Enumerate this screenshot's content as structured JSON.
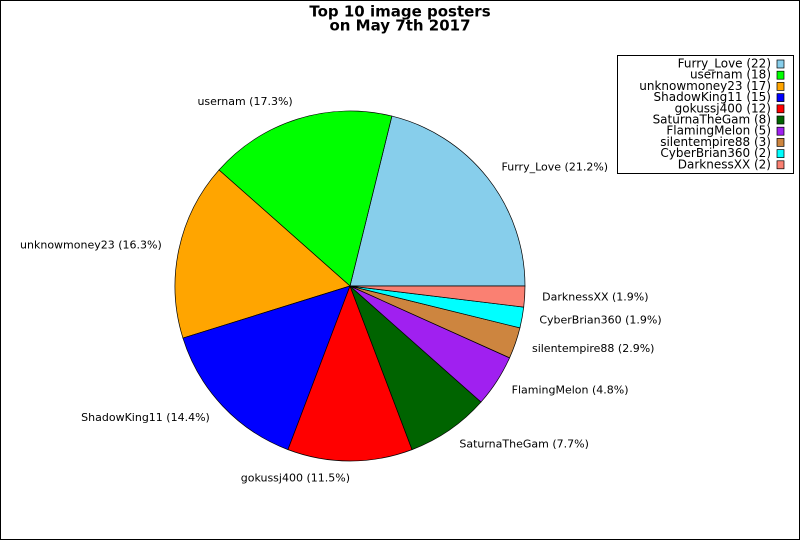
{
  "chart_data": {
    "type": "pie",
    "title": [
      "Top 10 image posters",
      "on May 7th 2017"
    ],
    "categories": [
      "Furry_Love",
      "usernam",
      "unknowmoney23",
      "ShadowKing11",
      "gokussj400",
      "SaturnaTheGam",
      "FlamingMelon",
      "silentempire88",
      "CyberBrian360",
      "DarknessXX"
    ],
    "values": [
      22,
      18,
      17,
      15,
      12,
      8,
      5,
      3,
      2,
      2
    ],
    "value_labels": [
      "Furry_Love (21.2%)",
      "usernam (17.3%)",
      "unknowmoney23 (16.3%)",
      "ShadowKing11 (14.4%)",
      "gokussj400 (11.5%)",
      "SaturnaTheGam (7.7%)",
      "FlamingMelon (4.8%)",
      "silentempire88 (2.9%)",
      "CyberBrian360 (1.9%)",
      "DarknessXX (1.9%)"
    ],
    "legend_labels": [
      "Furry_Love (22)",
      "usernam (18)",
      "unknowmoney23 (17)",
      "ShadowKing11 (15)",
      "gokussj400 (12)",
      "SaturnaTheGam (8)",
      "FlamingMelon (5)",
      "silentempire88 (3)",
      "CyberBrian360 (2)",
      "DarknessXX (2)"
    ],
    "colors": [
      "#87ceeb",
      "#00ff00",
      "#ffa500",
      "#0000ff",
      "#ff0000",
      "#006400",
      "#a020f0",
      "#cd853f",
      "#00ffff",
      "#fa8072"
    ],
    "legend": "upper right"
  }
}
